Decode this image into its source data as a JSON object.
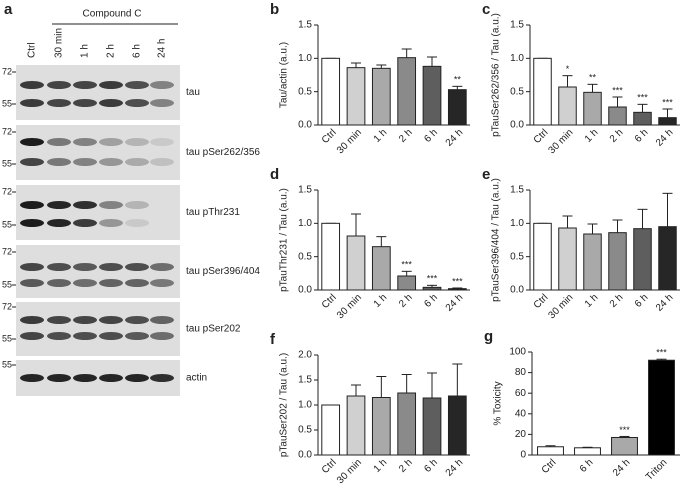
{
  "blot": {
    "label": "a",
    "group": "Compound C",
    "lanes": [
      "Ctrl",
      "30 min",
      "1 h",
      "2 h",
      "6 h",
      "24 h"
    ],
    "rows": [
      {
        "name": "tau",
        "markers": [
          "72",
          "55"
        ]
      },
      {
        "name": "tau pSer262/356",
        "markers": [
          "72",
          "55"
        ]
      },
      {
        "name": "tau pThr231",
        "markers": [
          "72",
          "55"
        ]
      },
      {
        "name": "tau pSer396/404",
        "markers": [
          "72",
          "55"
        ]
      },
      {
        "name": "tau pSer202",
        "markers": [
          "72",
          "55"
        ]
      },
      {
        "name": "actin",
        "markers": [
          "55"
        ]
      }
    ]
  },
  "chart_data": [
    {
      "type": "bar",
      "label": "b",
      "ylabel": "Tau/actin (a.u.)",
      "categories": [
        "Ctrl",
        "30 min",
        "1 h",
        "2 h",
        "6 h",
        "24 h"
      ],
      "values": [
        1,
        0.86,
        0.85,
        1.01,
        0.88,
        0.53
      ],
      "errors": [
        0,
        0.07,
        0.05,
        0.13,
        0.14,
        0.05
      ],
      "annotations": [
        null,
        null,
        null,
        null,
        null,
        "**"
      ],
      "colors": [
        "#ffffff",
        "#d0d0d0",
        "#a9a9a9",
        "#8a8a8a",
        "#5e5e5e",
        "#262626"
      ],
      "ylim": [
        0,
        1.5
      ],
      "yticks": [
        {
          "value": 0,
          "label": "0.0"
        },
        {
          "value": 0.5,
          "label": "0.5"
        },
        {
          "value": 1,
          "label": "1.0"
        },
        {
          "value": 1.5,
          "label": "1.5"
        }
      ]
    },
    {
      "type": "bar",
      "label": "c",
      "ylabel": "pTauSer262/356 / Tau (a.u.)",
      "categories": [
        "Ctrl",
        "30 min",
        "1 h",
        "2 h",
        "6 h",
        "24 h"
      ],
      "values": [
        1,
        0.57,
        0.49,
        0.27,
        0.19,
        0.11
      ],
      "errors": [
        0,
        0.17,
        0.12,
        0.15,
        0.12,
        0.13
      ],
      "annotations": [
        null,
        "*",
        "**",
        "***",
        "***",
        "***"
      ],
      "colors": [
        "#ffffff",
        "#d0d0d0",
        "#a9a9a9",
        "#8a8a8a",
        "#5e5e5e",
        "#262626"
      ],
      "ylim": [
        0,
        1.5
      ],
      "yticks": [
        {
          "value": 0,
          "label": "0.0"
        },
        {
          "value": 0.5,
          "label": "0.5"
        },
        {
          "value": 1,
          "label": "1.0"
        },
        {
          "value": 1.5,
          "label": "1.5"
        }
      ]
    },
    {
      "type": "bar",
      "label": "d",
      "ylabel": "pTauThr231 / Tau (a.u.)",
      "categories": [
        "Ctrl",
        "30 min",
        "1 h",
        "2 h",
        "6 h",
        "24 h"
      ],
      "values": [
        1,
        0.81,
        0.65,
        0.21,
        0.04,
        0.02
      ],
      "errors": [
        0,
        0.33,
        0.15,
        0.07,
        0.03,
        0.01
      ],
      "annotations": [
        null,
        null,
        null,
        "***",
        "***",
        "***"
      ],
      "colors": [
        "#ffffff",
        "#d0d0d0",
        "#a9a9a9",
        "#8a8a8a",
        "#5e5e5e",
        "#262626"
      ],
      "ylim": [
        0,
        1.5
      ],
      "yticks": [
        {
          "value": 0,
          "label": "0.0"
        },
        {
          "value": 0.5,
          "label": "0.5"
        },
        {
          "value": 1,
          "label": "1.0"
        },
        {
          "value": 1.5,
          "label": "1.5"
        }
      ]
    },
    {
      "type": "bar",
      "label": "e",
      "ylabel": "pTauSer396/404 / Tau (a.u.)",
      "categories": [
        "Ctrl",
        "30 min",
        "1 h",
        "2 h",
        "6 h",
        "24 h"
      ],
      "values": [
        1,
        0.93,
        0.84,
        0.86,
        0.92,
        0.95
      ],
      "errors": [
        0,
        0.18,
        0.15,
        0.19,
        0.29,
        0.5
      ],
      "annotations": [
        null,
        null,
        null,
        null,
        null,
        null
      ],
      "colors": [
        "#ffffff",
        "#d0d0d0",
        "#a9a9a9",
        "#8a8a8a",
        "#5e5e5e",
        "#262626"
      ],
      "ylim": [
        0,
        1.5
      ],
      "yticks": [
        {
          "value": 0,
          "label": "0.0"
        },
        {
          "value": 0.5,
          "label": "0.5"
        },
        {
          "value": 1,
          "label": "1.0"
        },
        {
          "value": 1.5,
          "label": "1.5"
        }
      ]
    },
    {
      "type": "bar",
      "label": "f",
      "ylabel": "pTauSer202 / Tau (a.u.)",
      "categories": [
        "Ctrl",
        "30 min",
        "1 h",
        "2 h",
        "6 h",
        "24 h"
      ],
      "values": [
        1,
        1.18,
        1.15,
        1.24,
        1.14,
        1.18
      ],
      "errors": [
        0,
        0.22,
        0.42,
        0.37,
        0.5,
        0.64
      ],
      "annotations": [
        null,
        null,
        null,
        null,
        null,
        null
      ],
      "colors": [
        "#ffffff",
        "#d0d0d0",
        "#a9a9a9",
        "#8a8a8a",
        "#5e5e5e",
        "#262626"
      ],
      "ylim": [
        0,
        2
      ],
      "yticks": [
        {
          "value": 0,
          "label": "0.0"
        },
        {
          "value": 0.5,
          "label": "0.5"
        },
        {
          "value": 1,
          "label": "1.0"
        },
        {
          "value": 1.5,
          "label": "1.5"
        },
        {
          "value": 2,
          "label": "2.0"
        }
      ]
    },
    {
      "type": "bar",
      "label": "g",
      "ylabel": "% Toxicity",
      "categories": [
        "Ctrl",
        "6 h",
        "24 h",
        "Triton"
      ],
      "values": [
        8,
        7,
        17,
        92
      ],
      "errors": [
        1,
        0.5,
        1,
        1
      ],
      "annotations": [
        null,
        null,
        "***",
        "***"
      ],
      "colors": [
        "#ffffff",
        "#ffffff",
        "#a9a9a9",
        "#000000"
      ],
      "ylim": [
        0,
        100
      ],
      "yticks": [
        0,
        20,
        40,
        60,
        80,
        100
      ]
    }
  ]
}
